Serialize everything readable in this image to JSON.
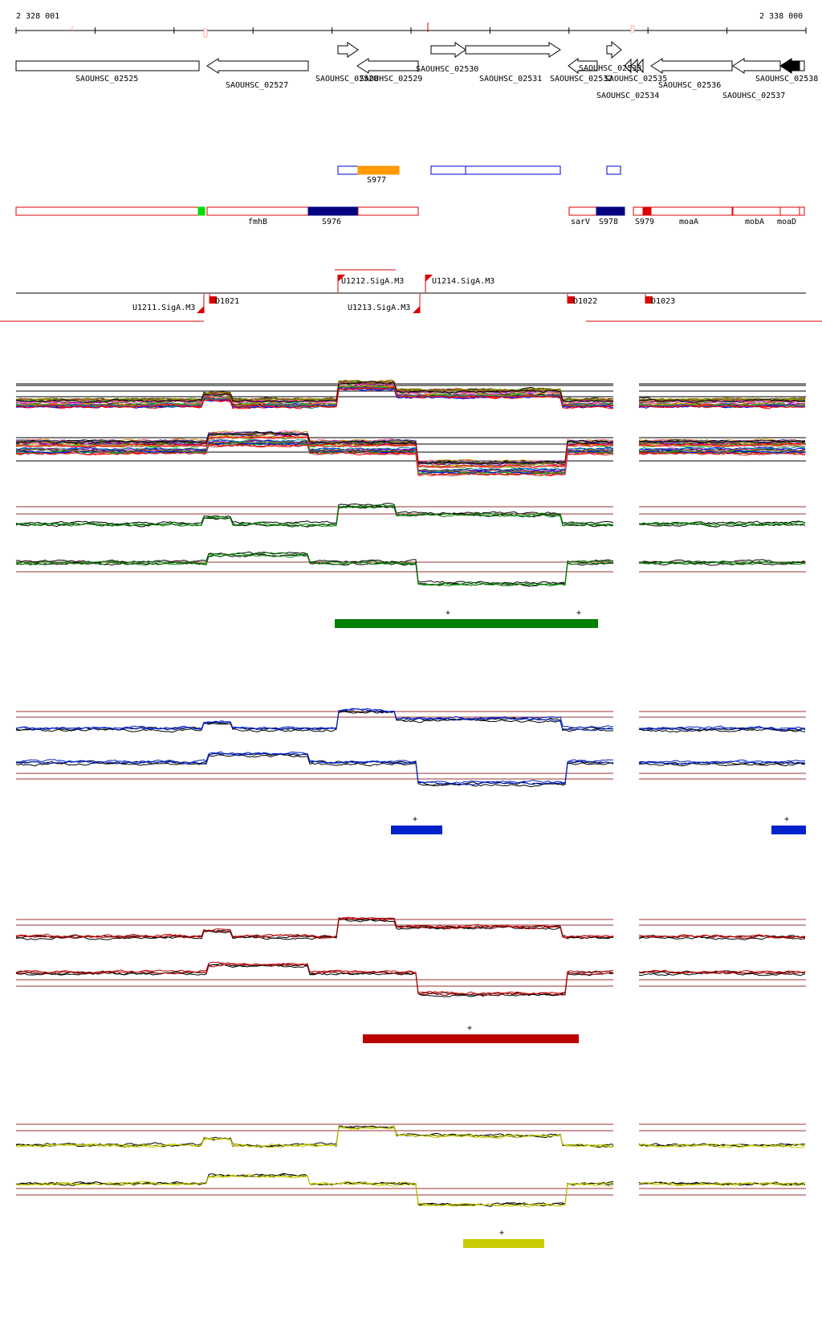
{
  "ruler": {
    "start_label": "2 328 001",
    "end_label": "2 338 000"
  },
  "genes": [
    {
      "id": "SAOUHSC_02525",
      "label": "SAOUHSC_02525"
    },
    {
      "id": "SAOUHSC_02527",
      "label": "SAOUHSC_02527"
    },
    {
      "id": "SAOUHSC_02528",
      "label": "SAOUHSC_02528"
    },
    {
      "id": "SAOUHSC_02529",
      "label": "SAOUHSC_02529"
    },
    {
      "id": "SAOUHSC_02530",
      "label": "SAOUHSC_02530"
    },
    {
      "id": "SAOUHSC_02531",
      "label": "SAOUHSC_02531"
    },
    {
      "id": "SAOUHSC_02532",
      "label": "SAOUHSC_02532"
    },
    {
      "id": "SAOUHSC_02533",
      "label": "SAOUHSC_02533"
    },
    {
      "id": "SAOUHSC_02534",
      "label": "SAOUHSC_02534"
    },
    {
      "id": "SAOUHSC_02535",
      "label": "SAOUHSC_02535"
    },
    {
      "id": "SAOUHSC_02536",
      "label": "SAOUHSC_02536"
    },
    {
      "id": "SAOUHSC_02537",
      "label": "SAOUHSC_02537"
    },
    {
      "id": "SAOUHSC_02538",
      "label": "SAOUHSC_02538"
    }
  ],
  "segments": [
    {
      "id": "S977",
      "label": "S977",
      "color": "#ff9900"
    }
  ],
  "transcripts": [
    {
      "id": "fmhB",
      "label": "fmhB"
    },
    {
      "id": "S976",
      "label": "S976",
      "color": "#000080"
    },
    {
      "id": "sarV",
      "label": "sarV"
    },
    {
      "id": "S978",
      "label": "S978",
      "color": "#000080"
    },
    {
      "id": "S979",
      "label": "S979"
    },
    {
      "id": "moaA",
      "label": "moaA"
    },
    {
      "id": "mobA",
      "label": "mobA"
    },
    {
      "id": "moaD",
      "label": "moaD"
    }
  ],
  "promoters": [
    {
      "id": "U1211",
      "label": "U1211.SigA.M3"
    },
    {
      "id": "D1021",
      "label": "D1021"
    },
    {
      "id": "U1212",
      "label": "U1212.SigA.M3"
    },
    {
      "id": "U1213",
      "label": "U1213.SigA.M3"
    },
    {
      "id": "U1214",
      "label": "U1214.SigA.M3"
    },
    {
      "id": "D1022",
      "label": "D1022"
    },
    {
      "id": "D1023",
      "label": "D1023"
    }
  ],
  "condition_groups": [
    {
      "name": "",
      "color": "#008000",
      "bars": [
        {
          "plus": "+"
        },
        {
          "plus": "+"
        }
      ]
    },
    {
      "name": "",
      "color": "#0022cc",
      "bars": [
        {
          "plus": "+"
        },
        {
          "plus": "+"
        }
      ]
    },
    {
      "name": "",
      "color": "#bb0000",
      "bars": [
        {
          "plus": "+"
        }
      ]
    },
    {
      "name": "",
      "color": "#c8cc00",
      "bars": [
        {
          "plus": "+"
        }
      ]
    }
  ],
  "colors": {
    "outline_red": "#dd0000",
    "outline_blue": "#0000cc",
    "threshold_line": "#993333",
    "green_marker": "#00dd00",
    "expression_palette": [
      "#000000",
      "#ff0000",
      "#00aa00",
      "#0000ff",
      "#cc8800",
      "#aa00aa",
      "#008888",
      "#886600",
      "#ff66aa",
      "#66aa00",
      "#4444aa",
      "#aa4444"
    ]
  }
}
